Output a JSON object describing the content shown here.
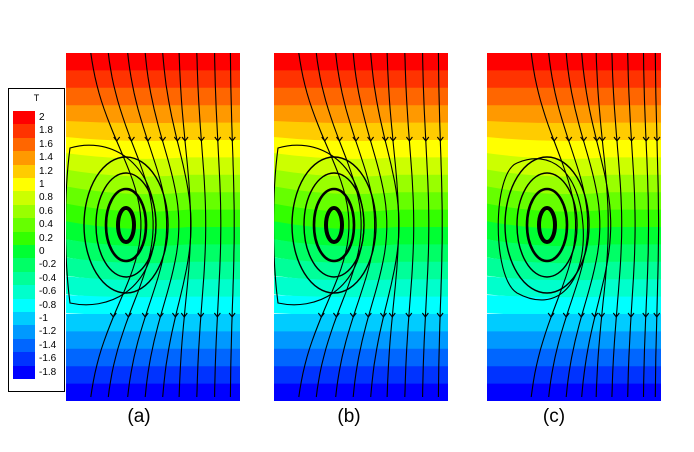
{
  "legend": {
    "title": "T",
    "levels": [
      {
        "label": "2",
        "color": "#ff0000"
      },
      {
        "label": "1.8",
        "color": "#ff3300"
      },
      {
        "label": "1.6",
        "color": "#ff6600"
      },
      {
        "label": "1.4",
        "color": "#ff9900"
      },
      {
        "label": "1.2",
        "color": "#ffcc00"
      },
      {
        "label": "1",
        "color": "#ffff00"
      },
      {
        "label": "0.8",
        "color": "#ccff00"
      },
      {
        "label": "0.6",
        "color": "#99ff00"
      },
      {
        "label": "0.4",
        "color": "#66ff00"
      },
      {
        "label": "0.2",
        "color": "#33ff00"
      },
      {
        "label": "0",
        "color": "#00ff33"
      },
      {
        "label": "-0.2",
        "color": "#00ff66"
      },
      {
        "label": "-0.4",
        "color": "#00ff99"
      },
      {
        "label": "-0.6",
        "color": "#00ffcc"
      },
      {
        "label": "-0.8",
        "color": "#00ffff"
      },
      {
        "label": "-1",
        "color": "#00ccff"
      },
      {
        "label": "-1.2",
        "color": "#0099ff"
      },
      {
        "label": "-1.4",
        "color": "#0066ff"
      },
      {
        "label": "-1.6",
        "color": "#0033ff"
      },
      {
        "label": "-1.8",
        "color": "#0000ff"
      }
    ]
  },
  "panels": [
    {
      "label": "(a)"
    },
    {
      "label": "(b)"
    },
    {
      "label": "(c)"
    }
  ]
}
